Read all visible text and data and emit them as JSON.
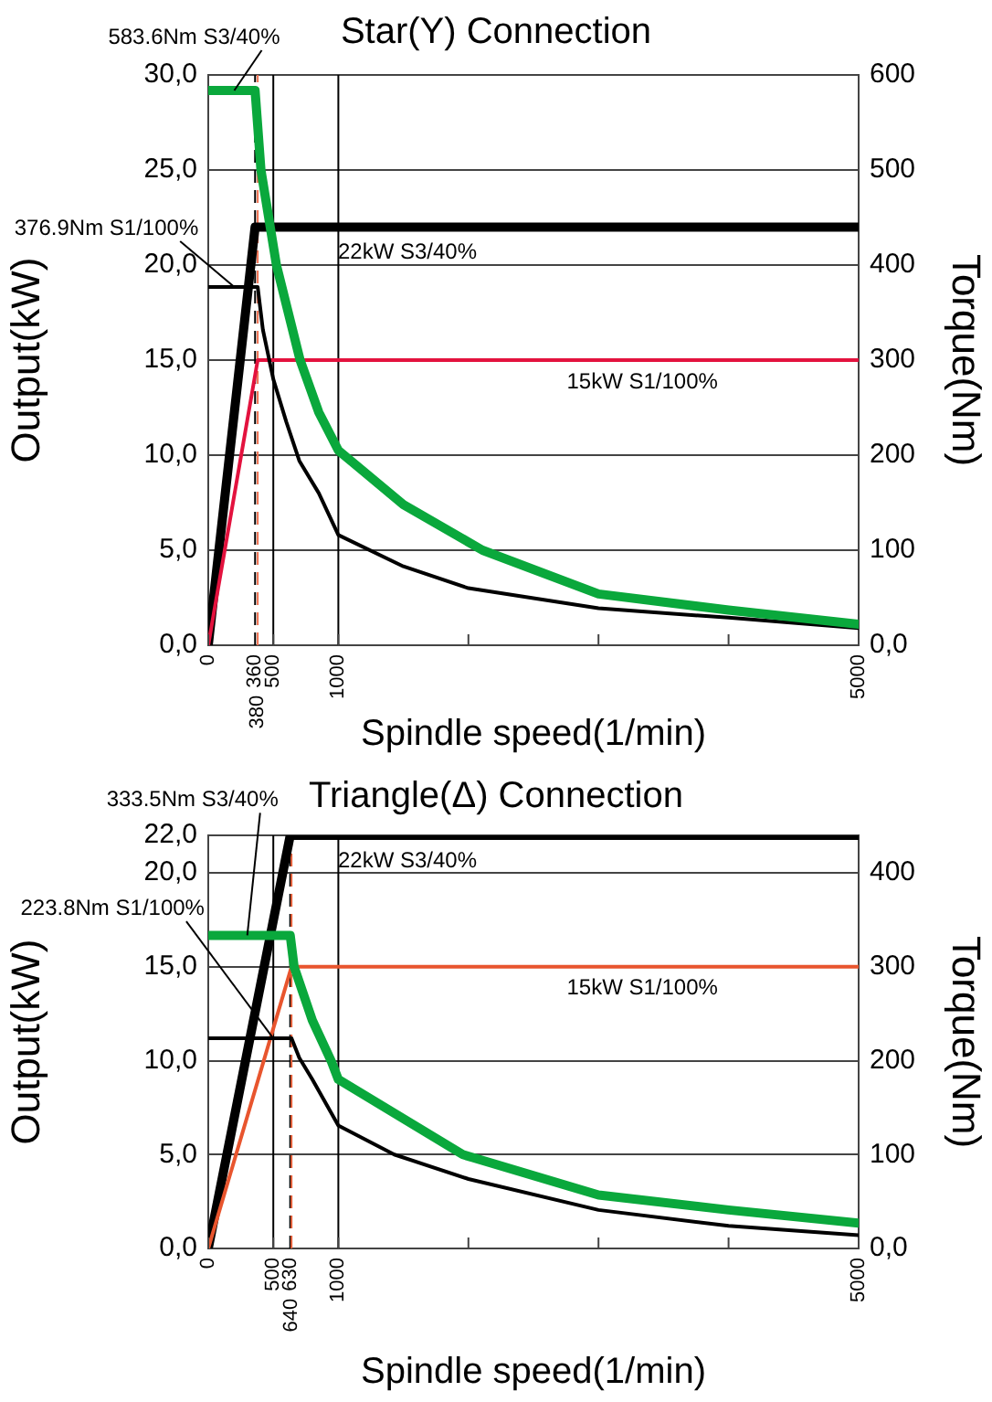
{
  "chart_data": [
    {
      "type": "line",
      "title": "Star(Y) Connection",
      "xlabel": "Spindle speed(1/min)",
      "ylabel": "Output(kW)",
      "y2label": "Torque(Nm)",
      "grid": "y",
      "marker": "none",
      "xlim": [
        0,
        5000
      ],
      "xticks": [
        0,
        500,
        1000,
        {
          "value": 2000,
          "label": null
        },
        {
          "value": 3000,
          "label": null
        },
        {
          "value": 4000,
          "label": null
        },
        5000
      ],
      "ylim": [
        0,
        30
      ],
      "yticks": [
        {
          "value": 0,
          "label": "0,0"
        },
        {
          "value": 5,
          "label": "5,0"
        },
        {
          "value": 10,
          "label": "10,0"
        },
        {
          "value": 15,
          "label": "15,0"
        },
        {
          "value": 20,
          "label": "20,0"
        },
        {
          "value": 25,
          "label": "25,0"
        },
        {
          "value": 30,
          "label": "30,0"
        }
      ],
      "y2lim": [
        0,
        600
      ],
      "y2ticks": [
        {
          "value": 0,
          "label": "0,0"
        },
        100,
        200,
        300,
        400,
        500,
        600
      ],
      "ref_lines": [
        {
          "axis": "x",
          "value": 360,
          "label": "360",
          "color": "#000000",
          "line_style": "dashed"
        },
        {
          "axis": "x",
          "value": 380,
          "label": "380",
          "color": "#f07050",
          "line_style": "dashed"
        },
        {
          "axis": "x",
          "value": 500,
          "color": "#000000",
          "line_style": "solid"
        },
        {
          "axis": "x",
          "value": 1000,
          "color": "#000000",
          "line_style": "solid"
        }
      ],
      "series": [
        {
          "name": "22kW S3/40%",
          "color": "#000000",
          "x": [
            0,
            360,
            5000
          ],
          "values": [
            0,
            22,
            22
          ]
        },
        {
          "name": "15kW S1/100%",
          "color": "#e3123e",
          "x": [
            0,
            380,
            5000
          ],
          "values": [
            0,
            15,
            15
          ]
        },
        {
          "name": "376.9Nm S1/100%",
          "color": "#000000",
          "axis": "y2",
          "x": [
            0,
            380,
            420,
            500,
            600,
            700,
            850,
            1000,
            1500,
            2000,
            3000,
            4000,
            5000
          ],
          "values": [
            376.9,
            376.9,
            332,
            280,
            235,
            194,
            160,
            116,
            83,
            60,
            39,
            29,
            18
          ]
        },
        {
          "name": "583.6Nm S3/40%",
          "color": "#0aa83c",
          "axis": "y2",
          "x": [
            0,
            360,
            405,
            524,
            706,
            850,
            1000,
            1500,
            2108,
            3000,
            4000,
            5000
          ],
          "values": [
            583.6,
            583.6,
            500,
            400,
            300,
            245,
            205,
            148,
            100,
            54,
            37,
            22
          ]
        }
      ]
    },
    {
      "type": "line",
      "title": "Triangle(Δ) Connection",
      "xlabel": "Spindle speed(1/min)",
      "ylabel": "Output(kW)",
      "y2label": "Torque(Nm)",
      "grid": "y",
      "marker": "none",
      "xlim": [
        0,
        5000
      ],
      "xticks": [
        0,
        500,
        1000,
        {
          "value": 2000,
          "label": null
        },
        {
          "value": 3000,
          "label": null
        },
        {
          "value": 4000,
          "label": null
        },
        5000
      ],
      "ylim": [
        0,
        22
      ],
      "yticks": [
        {
          "value": 0,
          "label": "0,0"
        },
        {
          "value": 5,
          "label": "5,0"
        },
        {
          "value": 10,
          "label": "10,0"
        },
        {
          "value": 15,
          "label": "15,0"
        },
        {
          "value": 20,
          "label": "20,0"
        },
        {
          "value": 22,
          "label": "22,0"
        }
      ],
      "y2lim": [
        0,
        440
      ],
      "y2ticks": [
        {
          "value": 0,
          "label": "0,0"
        },
        100,
        200,
        300,
        400
      ],
      "ref_lines": [
        {
          "axis": "x",
          "value": 500,
          "color": "#000000",
          "line_style": "solid"
        },
        {
          "axis": "x",
          "value": 630,
          "label": "630",
          "color": "#000000",
          "line_style": "dashed"
        },
        {
          "axis": "x",
          "value": 640,
          "label": "640",
          "color": "#e8603a",
          "line_style": "dashed"
        },
        {
          "axis": "x",
          "value": 1000,
          "color": "#000000",
          "line_style": "solid"
        }
      ],
      "series": [
        {
          "name": "22kW S3/40%",
          "color": "#000000",
          "x": [
            0,
            630,
            5000
          ],
          "values": [
            0,
            22,
            22
          ]
        },
        {
          "name": "15kW S1/100%",
          "color": "#e8552e",
          "x": [
            0,
            640,
            5000
          ],
          "values": [
            0,
            15,
            15
          ]
        },
        {
          "name": "223.8Nm S1/100%",
          "color": "#000000",
          "axis": "y2",
          "x": [
            0,
            640,
            700,
            800,
            1000,
            1430,
            2000,
            3000,
            4000,
            5000
          ],
          "values": [
            223.8,
            223.8,
            203,
            180,
            131,
            100,
            74,
            41,
            24,
            14
          ]
        },
        {
          "name": "333.5Nm S3/40%",
          "color": "#0aa83c",
          "axis": "y2",
          "x": [
            0,
            630,
            660,
            800,
            944,
            1000,
            1957,
            3000,
            4000,
            5000
          ],
          "values": [
            333.5,
            333.5,
            300,
            243,
            200,
            180,
            100,
            57,
            41,
            27
          ]
        }
      ]
    }
  ]
}
